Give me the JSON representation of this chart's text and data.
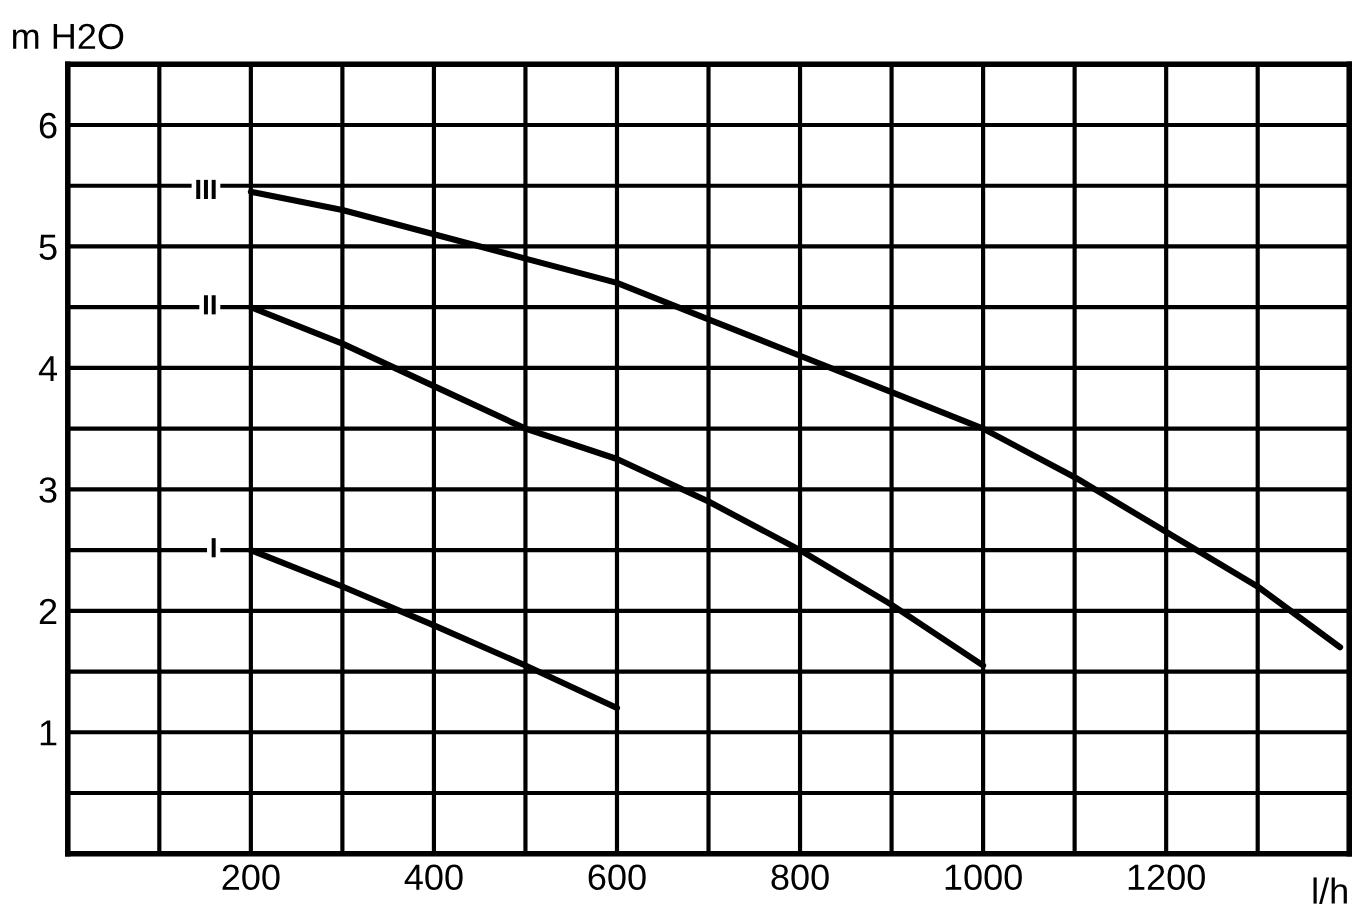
{
  "chart_data": {
    "type": "line",
    "xlabel": "l/h",
    "ylabel": "m H2O",
    "x": [
      200,
      300,
      400,
      500,
      600,
      700,
      800,
      900,
      1000,
      1100,
      1200,
      1300,
      1390
    ],
    "series": [
      {
        "name": "I",
        "color": "#000000",
        "values": [
          2.5,
          2.2,
          1.88,
          1.55,
          1.2,
          null,
          null,
          null,
          null,
          null,
          null,
          null,
          null
        ]
      },
      {
        "name": "II",
        "color": "#000000",
        "values": [
          4.5,
          4.2,
          3.85,
          3.5,
          3.25,
          2.9,
          2.5,
          2.05,
          1.55,
          null,
          null,
          null,
          null
        ]
      },
      {
        "name": "III",
        "color": "#000000",
        "values": [
          5.45,
          5.3,
          5.1,
          4.9,
          4.7,
          4.4,
          4.1,
          3.8,
          3.5,
          3.1,
          2.65,
          2.2,
          1.7
        ]
      }
    ],
    "xlim": [
      0,
      1400
    ],
    "ylim": [
      0,
      6.5
    ],
    "xticks": [
      {
        "value": 100,
        "label": null
      },
      200,
      {
        "value": 300,
        "label": null
      },
      400,
      {
        "value": 500,
        "label": null
      },
      600,
      {
        "value": 700,
        "label": null
      },
      800,
      {
        "value": 900,
        "label": null
      },
      1000,
      {
        "value": 1100,
        "label": null
      },
      1200,
      {
        "value": 1300,
        "label": null
      }
    ],
    "yticks": [
      {
        "value": 0.5,
        "label": null
      },
      1,
      {
        "value": 1.5,
        "label": null
      },
      2,
      {
        "value": 2.5,
        "label": null
      },
      3,
      {
        "value": 3.5,
        "label": null
      },
      4,
      {
        "value": 4.5,
        "label": null
      },
      5,
      {
        "value": 5.5,
        "label": null
      },
      6
    ],
    "grid": true,
    "legend": false,
    "marker": "none",
    "line_style": "solid"
  }
}
